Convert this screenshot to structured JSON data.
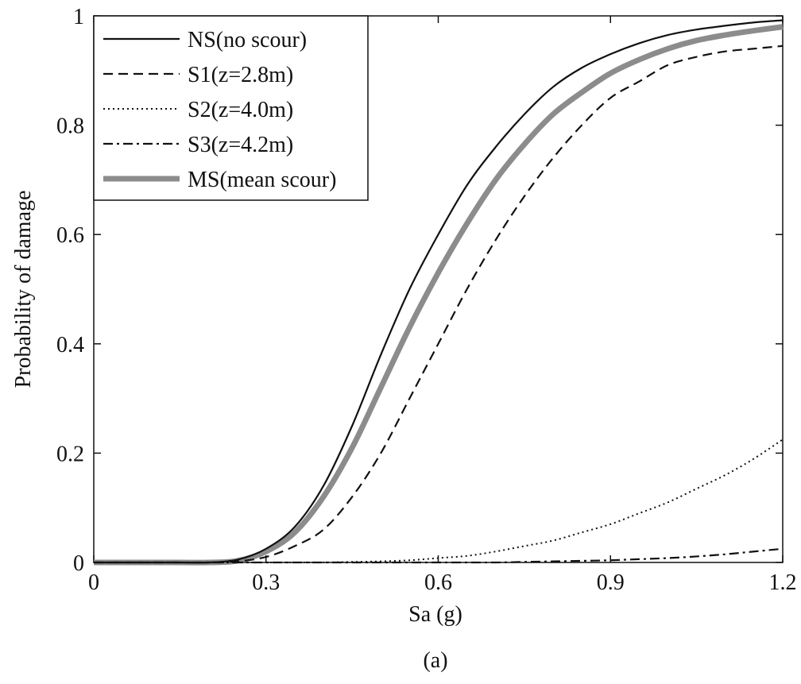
{
  "chart_data": {
    "type": "line",
    "title": "",
    "xlabel": "Sa (g)",
    "ylabel": "Probability of damage",
    "caption": "(a)",
    "xlim": [
      0,
      1.2
    ],
    "ylim": [
      0,
      1
    ],
    "xticks": [
      0,
      0.3,
      0.6,
      0.9,
      1.2
    ],
    "xtick_labels": [
      "0",
      "0.3",
      "0.6",
      "0.9",
      "1.2"
    ],
    "yticks": [
      0,
      0.2,
      0.4,
      0.6,
      0.8,
      1
    ],
    "ytick_labels": [
      "0",
      "0.2",
      "0.4",
      "0.6",
      "0.8",
      "1"
    ],
    "grid": false,
    "legend_position": "top-left",
    "x": [
      0,
      0.05,
      0.1,
      0.15,
      0.2,
      0.25,
      0.3,
      0.35,
      0.4,
      0.45,
      0.5,
      0.55,
      0.6,
      0.65,
      0.7,
      0.75,
      0.8,
      0.85,
      0.9,
      0.95,
      1.0,
      1.05,
      1.1,
      1.15,
      1.2
    ],
    "series": [
      {
        "name": "NS(no scour)",
        "style": "solid",
        "color": "#111111",
        "values": [
          0,
          0,
          0,
          0,
          0,
          0.005,
          0.025,
          0.065,
          0.14,
          0.25,
          0.38,
          0.5,
          0.6,
          0.69,
          0.76,
          0.82,
          0.87,
          0.905,
          0.93,
          0.95,
          0.965,
          0.975,
          0.982,
          0.988,
          0.992
        ]
      },
      {
        "name": "S1(z=2.8m)",
        "style": "dashed",
        "color": "#111111",
        "values": [
          0,
          0,
          0,
          0,
          0,
          0.002,
          0.01,
          0.03,
          0.06,
          0.12,
          0.2,
          0.3,
          0.4,
          0.5,
          0.59,
          0.67,
          0.74,
          0.8,
          0.85,
          0.88,
          0.91,
          0.925,
          0.935,
          0.94,
          0.945
        ]
      },
      {
        "name": "S2(z=4.0m)",
        "style": "dotted",
        "color": "#111111",
        "values": [
          0,
          0,
          0,
          0,
          0,
          0,
          0,
          0,
          0,
          0.001,
          0.002,
          0.004,
          0.008,
          0.012,
          0.02,
          0.03,
          0.04,
          0.055,
          0.07,
          0.09,
          0.11,
          0.135,
          0.16,
          0.19,
          0.225
        ]
      },
      {
        "name": "S3(z=4.2m)",
        "style": "dashdot",
        "color": "#111111",
        "values": [
          0,
          0,
          0,
          0,
          0,
          0,
          0,
          0,
          0,
          0,
          0,
          0,
          0,
          0,
          0,
          0.001,
          0.002,
          0.003,
          0.004,
          0.006,
          0.008,
          0.011,
          0.015,
          0.02,
          0.025
        ]
      },
      {
        "name": "MS(mean scour)",
        "style": "thick",
        "color": "#8c8c8c",
        "values": [
          0,
          0,
          0,
          0,
          0,
          0.003,
          0.02,
          0.055,
          0.12,
          0.21,
          0.32,
          0.43,
          0.53,
          0.62,
          0.7,
          0.765,
          0.82,
          0.86,
          0.895,
          0.92,
          0.94,
          0.955,
          0.965,
          0.973,
          0.98
        ]
      }
    ]
  }
}
